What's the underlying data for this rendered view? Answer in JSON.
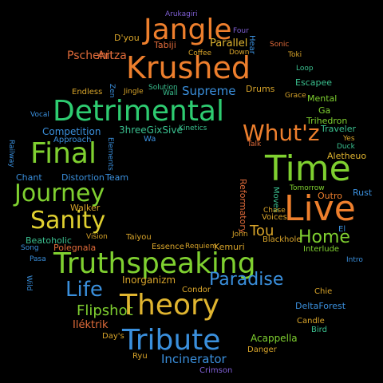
{
  "words": [
    {
      "text": "Arukagiri",
      "color": "#7f5fd4"
    },
    {
      "text": "Jangle",
      "color": "#ee7f2d"
    },
    {
      "text": "Four",
      "color": "#7f5fd4"
    },
    {
      "text": "D'you",
      "color": "#d8a42a"
    },
    {
      "text": "Tabiji",
      "color": "#e06b3a"
    },
    {
      "text": "Parallel",
      "color": "#e0b530"
    },
    {
      "text": "Sonic",
      "color": "#e06b3a"
    },
    {
      "text": "Pschenitza",
      "color": "#e06b3a"
    },
    {
      "text": "Art",
      "color": "#e06b3a"
    },
    {
      "text": "Coffee",
      "color": "#d8a42a"
    },
    {
      "text": "Down",
      "color": "#d8a42a"
    },
    {
      "text": "Hear",
      "color": "#3a8fdc"
    },
    {
      "text": "Toki",
      "color": "#d8a42a"
    },
    {
      "text": "Krushed",
      "color": "#ee7f2d"
    },
    {
      "text": "Loop",
      "color": "#3ac08f"
    },
    {
      "text": "Zen",
      "color": "#3a8fdc"
    },
    {
      "text": "Jingle",
      "color": "#d8a42a"
    },
    {
      "text": "Solution",
      "color": "#3ac08f"
    },
    {
      "text": "Drums",
      "color": "#d8a42a"
    },
    {
      "text": "Escapee",
      "color": "#3ac08f"
    },
    {
      "text": "Endless",
      "color": "#d8a42a"
    },
    {
      "text": "Wall",
      "color": "#3ac08f"
    },
    {
      "text": "Supreme",
      "color": "#3a8fdc"
    },
    {
      "text": "Grace",
      "color": "#d8a42a"
    },
    {
      "text": "Mental",
      "color": "#7fd030"
    },
    {
      "text": "Vocal",
      "color": "#3a8fdc"
    },
    {
      "text": "Detrimental",
      "color": "#2ecc71"
    },
    {
      "text": "Ga",
      "color": "#7fd030"
    },
    {
      "text": "Trihedron",
      "color": "#7fd030"
    },
    {
      "text": "Competition",
      "color": "#3a8fdc"
    },
    {
      "text": "3hreeGixSive",
      "color": "#3ac08f"
    },
    {
      "text": "Kinetics",
      "color": "#3ac08f"
    },
    {
      "text": "Whut'z",
      "color": "#ee7f2d"
    },
    {
      "text": "Traveler",
      "color": "#3ac08f"
    },
    {
      "text": "Approach",
      "color": "#3a8fdc"
    },
    {
      "text": "Wa",
      "color": "#3a8fdc"
    },
    {
      "text": "Yes",
      "color": "#d8a42a"
    },
    {
      "text": "Duck",
      "color": "#3ac08f"
    },
    {
      "text": "Talk",
      "color": "#e06b3a"
    },
    {
      "text": "Railway",
      "color": "#3a8fdc"
    },
    {
      "text": "Final",
      "color": "#7fd030"
    },
    {
      "text": "Elements",
      "color": "#3a8fdc"
    },
    {
      "text": "Aletheuo",
      "color": "#e0b530"
    },
    {
      "text": "Time",
      "color": "#7fd030"
    },
    {
      "text": "Chant",
      "color": "#3a8fdc"
    },
    {
      "text": "Distortion",
      "color": "#3a8fdc"
    },
    {
      "text": "Team",
      "color": "#3a8fdc"
    },
    {
      "text": "Tomorrow",
      "color": "#7fd030"
    },
    {
      "text": "Journey",
      "color": "#7fd030"
    },
    {
      "text": "Moves",
      "color": "#3ac08f"
    },
    {
      "text": "Outro",
      "color": "#ee7f2d"
    },
    {
      "text": "Rust",
      "color": "#3a8fdc"
    },
    {
      "text": "Walker",
      "color": "#d8a42a"
    },
    {
      "text": "Chase",
      "color": "#d8a42a"
    },
    {
      "text": "Reformatory",
      "color": "#e06b3a"
    },
    {
      "text": "Voices",
      "color": "#d8a42a"
    },
    {
      "text": "Sanity",
      "color": "#e0d030"
    },
    {
      "text": "Live",
      "color": "#ee7f2d"
    },
    {
      "text": "Beatoholic",
      "color": "#3ac08f"
    },
    {
      "text": "Tou",
      "color": "#d8a42a"
    },
    {
      "text": "El",
      "color": "#3a8fdc"
    },
    {
      "text": "John",
      "color": "#d8a42a"
    },
    {
      "text": "Vision",
      "color": "#d8a42a"
    },
    {
      "text": "Taiyou",
      "color": "#d8a42a"
    },
    {
      "text": "Blackhole",
      "color": "#d8a42a"
    },
    {
      "text": "Home",
      "color": "#7fd030"
    },
    {
      "text": "Song",
      "color": "#3a8fdc"
    },
    {
      "text": "Polegnala",
      "color": "#e06b3a"
    },
    {
      "text": "Essence",
      "color": "#d8a42a"
    },
    {
      "text": "Requiem",
      "color": "#d8a42a"
    },
    {
      "text": "Kemuri",
      "color": "#d8a42a"
    },
    {
      "text": "Interlude",
      "color": "#7fd030"
    },
    {
      "text": "Pasa",
      "color": "#3a8fdc"
    },
    {
      "text": "Truthspeaking",
      "color": "#7fd030"
    },
    {
      "text": "Intro",
      "color": "#3a8fdc"
    },
    {
      "text": "Wild",
      "color": "#3a8fdc"
    },
    {
      "text": "Inorganizm",
      "color": "#d8a42a"
    },
    {
      "text": "Paradise",
      "color": "#3a8fdc"
    },
    {
      "text": "Life",
      "color": "#3a8fdc"
    },
    {
      "text": "Condor",
      "color": "#d8a42a"
    },
    {
      "text": "Chie",
      "color": "#d8a42a"
    },
    {
      "text": "Flipshot",
      "color": "#7fd030"
    },
    {
      "text": "Theory",
      "color": "#e0b530"
    },
    {
      "text": "DeltaForest",
      "color": "#3a8fdc"
    },
    {
      "text": "Candle",
      "color": "#d8a42a"
    },
    {
      "text": "Iléktrik",
      "color": "#e06b3a"
    },
    {
      "text": "Bird",
      "color": "#3ac08f"
    },
    {
      "text": "Day's",
      "color": "#d8a42a"
    },
    {
      "text": "Tribute",
      "color": "#3a8fdc"
    },
    {
      "text": "Acappella",
      "color": "#7fd030"
    },
    {
      "text": "Ryu",
      "color": "#d8a42a"
    },
    {
      "text": "Danger",
      "color": "#d8a42a"
    },
    {
      "text": "Incinerator",
      "color": "#3a8fdc"
    },
    {
      "text": "Crimson",
      "color": "#7f5fd4"
    }
  ]
}
